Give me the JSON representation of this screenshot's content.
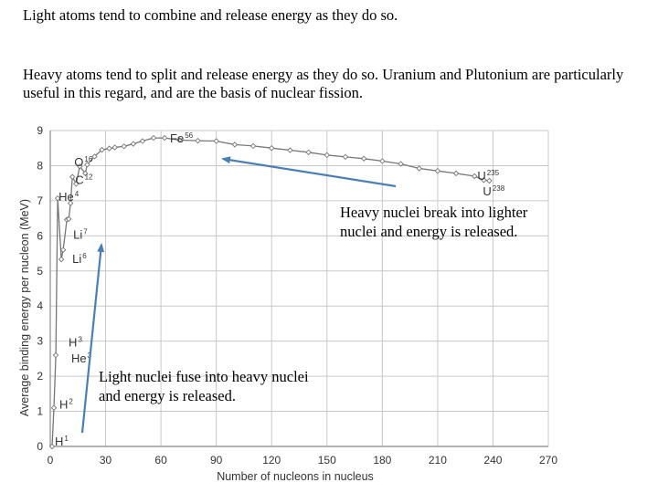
{
  "text": {
    "light_atoms": "Light atoms tend to combine and release energy as they do so.",
    "heavy_atoms": "Heavy atoms tend to split and release energy as they do so.  Uranium and Plutonium are particularly useful in this regard, and are the basis of nuclear fission.",
    "heavy_annotation": "Heavy nuclei break into lighter nuclei and energy is released.",
    "light_annotation": "Light nuclei fuse into heavy nuclei and energy is released."
  },
  "colors": {
    "arrow": "#4a7fb5",
    "curve": "#777777",
    "grid": "#c8c8c8"
  },
  "chart_data": {
    "type": "line",
    "title": "",
    "xlabel": "Number of nucleons in nucleus",
    "ylabel": "Average binding energy per nucleon (MeV)",
    "xlim": [
      0,
      270
    ],
    "ylim": [
      0,
      9
    ],
    "xticks": [
      0,
      30,
      60,
      90,
      120,
      150,
      180,
      210,
      240,
      270
    ],
    "yticks": [
      0,
      1,
      2,
      3,
      4,
      5,
      6,
      7,
      8,
      9
    ],
    "grid": true,
    "series": [
      {
        "x": [
          1,
          2,
          3,
          4,
          6,
          7,
          9,
          10,
          11,
          12,
          14,
          16,
          19,
          20,
          24,
          28,
          32,
          35,
          40,
          45,
          50,
          56,
          62,
          70,
          80,
          90,
          100,
          110,
          120,
          130,
          140,
          150,
          160,
          170,
          180,
          190,
          200,
          210,
          220,
          230,
          235,
          238
        ],
        "y": [
          0.0,
          1.1,
          2.6,
          7.07,
          5.33,
          5.6,
          6.46,
          6.48,
          6.93,
          7.68,
          7.48,
          7.98,
          7.78,
          8.03,
          8.26,
          8.45,
          8.49,
          8.52,
          8.55,
          8.62,
          8.7,
          8.79,
          8.79,
          8.73,
          8.71,
          8.7,
          8.6,
          8.56,
          8.5,
          8.44,
          8.38,
          8.3,
          8.25,
          8.2,
          8.13,
          8.05,
          7.92,
          7.85,
          7.78,
          7.7,
          7.59,
          7.57
        ]
      }
    ],
    "annotations": [
      {
        "element": "H",
        "mass": "1",
        "x": 1,
        "y": 0.0
      },
      {
        "element": "H",
        "mass": "2",
        "x": 2,
        "y": 1.1
      },
      {
        "element": "H",
        "mass": "3",
        "x": 3,
        "y": 2.8
      },
      {
        "element": "He",
        "mass": "3",
        "x": 3,
        "y": 2.6
      },
      {
        "element": "He",
        "mass": "4",
        "x": 4,
        "y": 7.07
      },
      {
        "element": "Li",
        "mass": "6",
        "x": 6,
        "y": 5.33
      },
      {
        "element": "Li",
        "mass": "7",
        "x": 7,
        "y": 5.6
      },
      {
        "element": "C",
        "mass": "12",
        "x": 12,
        "y": 7.68
      },
      {
        "element": "O",
        "mass": "16",
        "x": 16,
        "y": 7.98
      },
      {
        "element": "Fe",
        "mass": "56",
        "x": 56,
        "y": 8.79
      },
      {
        "element": "U",
        "mass": "235",
        "x": 235,
        "y": 7.59
      },
      {
        "element": "U",
        "mass": "238",
        "x": 238,
        "y": 7.57
      }
    ]
  }
}
